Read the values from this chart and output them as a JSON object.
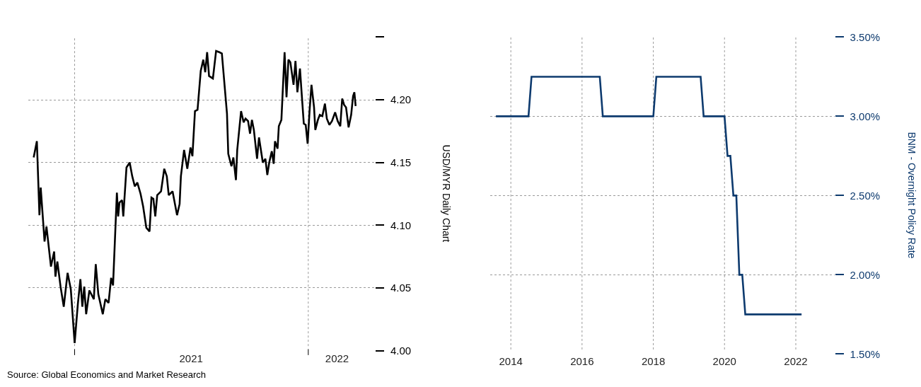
{
  "chart_data": [
    {
      "type": "line",
      "ylabel": "USD/MYR Daily Chart",
      "grid": true,
      "xlim": [
        "2020-10-21",
        "2022-04-15"
      ],
      "xticks": [
        {
          "value": "2021-01-01",
          "label": null
        },
        {
          "value": "2021-07-02",
          "label": "2021"
        },
        {
          "value": "2022-01-01",
          "label": null
        },
        {
          "value": "2022-02-15",
          "label": "2022"
        }
      ],
      "ylim": [
        4.0,
        4.25
      ],
      "yticks": [
        {
          "value": 4.0,
          "label": "4.00"
        },
        4.05,
        {
          "value": 4.1,
          "label": "4.10"
        },
        4.15,
        {
          "value": 4.2,
          "label": "4.20"
        },
        {
          "value": 4.25,
          "label": null
        }
      ],
      "annotations": [
        "Source: Global Economics and Market Research"
      ],
      "series": [
        {
          "color": "#000000",
          "x": [
            "2020-10-29",
            "2020-11-03",
            "2020-11-07",
            "2020-11-09",
            "2020-11-15",
            "2020-11-18",
            "2020-11-25",
            "2020-11-30",
            "2020-12-02",
            "2020-12-05",
            "2020-12-10",
            "2020-12-15",
            "2020-12-21",
            "2020-12-26",
            "2021-01-01",
            "2021-01-06",
            "2021-01-10",
            "2021-01-13",
            "2021-01-16",
            "2021-01-19",
            "2021-01-24",
            "2021-01-31",
            "2021-02-03",
            "2021-02-07",
            "2021-02-14",
            "2021-02-18",
            "2021-02-23",
            "2021-02-27",
            "2021-03-02",
            "2021-03-08",
            "2021-03-10",
            "2021-03-12",
            "2021-03-16",
            "2021-03-18",
            "2021-03-23",
            "2021-03-28",
            "2021-04-01",
            "2021-04-05",
            "2021-04-09",
            "2021-04-14",
            "2021-04-18",
            "2021-04-23",
            "2021-04-28",
            "2021-05-01",
            "2021-05-04",
            "2021-05-07",
            "2021-05-10",
            "2021-05-16",
            "2021-05-21",
            "2021-05-25",
            "2021-05-28",
            "2021-06-03",
            "2021-06-10",
            "2021-06-14",
            "2021-06-16",
            "2021-06-21",
            "2021-06-26",
            "2021-07-01",
            "2021-07-04",
            "2021-07-08",
            "2021-07-12",
            "2021-07-17",
            "2021-07-21",
            "2021-07-24",
            "2021-07-27",
            "2021-07-30",
            "2021-08-05",
            "2021-08-10",
            "2021-08-15",
            "2021-08-19",
            "2021-08-27",
            "2021-08-29",
            "2021-09-03",
            "2021-09-06",
            "2021-09-10",
            "2021-09-12",
            "2021-09-18",
            "2021-09-22",
            "2021-09-25",
            "2021-09-29",
            "2021-10-02",
            "2021-10-05",
            "2021-10-08",
            "2021-10-13",
            "2021-10-16",
            "2021-10-22",
            "2021-10-26",
            "2021-10-29",
            "2021-11-01",
            "2021-11-05",
            "2021-11-08",
            "2021-11-10",
            "2021-11-14",
            "2021-11-16",
            "2021-11-20",
            "2021-11-25",
            "2021-11-28",
            "2021-12-01",
            "2021-12-04",
            "2021-12-09",
            "2021-12-12",
            "2021-12-15",
            "2021-12-19",
            "2021-12-21",
            "2021-12-25",
            "2021-12-28",
            "2021-12-31",
            "2022-01-03",
            "2022-01-06",
            "2022-01-10",
            "2022-01-12",
            "2022-01-16",
            "2022-01-19",
            "2022-01-23",
            "2022-01-27",
            "2022-01-30",
            "2022-02-03",
            "2022-02-07",
            "2022-02-12",
            "2022-02-16",
            "2022-02-20",
            "2022-02-23",
            "2022-02-26",
            "2022-03-01",
            "2022-03-05",
            "2022-03-09",
            "2022-03-12",
            "2022-03-14",
            "2022-03-16"
          ],
          "values": [
            4.154,
            4.167,
            4.108,
            4.13,
            4.087,
            4.099,
            4.067,
            4.079,
            4.059,
            4.071,
            4.051,
            4.035,
            4.062,
            4.049,
            4.006,
            4.037,
            4.057,
            4.035,
            4.051,
            4.029,
            4.048,
            4.041,
            4.069,
            4.045,
            4.029,
            4.041,
            4.038,
            4.058,
            4.052,
            4.126,
            4.107,
            4.118,
            4.12,
            4.107,
            4.146,
            4.15,
            4.139,
            4.131,
            4.134,
            4.125,
            4.115,
            4.098,
            4.095,
            4.122,
            4.121,
            4.107,
            4.124,
            4.127,
            4.145,
            4.139,
            4.124,
            4.127,
            4.108,
            4.117,
            4.139,
            4.16,
            4.145,
            4.162,
            4.155,
            4.191,
            4.192,
            4.223,
            4.232,
            4.222,
            4.238,
            4.219,
            4.217,
            4.239,
            4.238,
            4.237,
            4.189,
            4.157,
            4.147,
            4.154,
            4.136,
            4.16,
            4.191,
            4.182,
            4.185,
            4.183,
            4.173,
            4.184,
            4.176,
            4.153,
            4.17,
            4.15,
            4.153,
            4.14,
            4.15,
            4.159,
            4.149,
            4.167,
            4.161,
            4.179,
            4.184,
            4.238,
            4.202,
            4.232,
            4.23,
            4.212,
            4.231,
            4.206,
            4.225,
            4.21,
            4.181,
            4.18,
            4.165,
            4.191,
            4.212,
            4.194,
            4.176,
            4.184,
            4.188,
            4.187,
            4.197,
            4.185,
            4.18,
            4.183,
            4.19,
            4.183,
            4.179,
            4.201,
            4.196,
            4.194,
            4.178,
            4.188,
            4.203,
            4.206,
            4.195
          ]
        }
      ]
    },
    {
      "type": "line",
      "ylabel": "BNM - Overnight Policy Rate",
      "grid": true,
      "xlim": [
        "2013-06-01",
        "2023-02-01"
      ],
      "xticks": [
        "2014",
        "2016",
        "2018",
        "2020",
        "2022"
      ],
      "ylim": [
        1.5,
        3.5
      ],
      "yticks": [
        {
          "value": 1.5,
          "label": "1.50%"
        },
        {
          "value": 2.0,
          "label": "2.00%"
        },
        {
          "value": 2.5,
          "label": "2.50%"
        },
        {
          "value": 3.0,
          "label": "3.00%"
        },
        {
          "value": 3.5,
          "label": "3.50%"
        }
      ],
      "series": [
        {
          "color": "#0d3a6e",
          "x": [
            "2013-08-01",
            "2014-07-01",
            "2014-08-01",
            "2016-07-01",
            "2016-08-01",
            "2018-01-01",
            "2018-02-01",
            "2019-05-01",
            "2019-06-01",
            "2020-01-01",
            "2020-02-01",
            "2020-03-01",
            "2020-04-01",
            "2020-05-01",
            "2020-06-01",
            "2020-07-01",
            "2020-08-01",
            "2022-03-01"
          ],
          "values": [
            3.0,
            3.0,
            3.25,
            3.25,
            3.0,
            3.0,
            3.25,
            3.25,
            3.0,
            3.0,
            2.75,
            2.75,
            2.5,
            2.5,
            2.0,
            2.0,
            1.75,
            1.75
          ]
        }
      ]
    }
  ]
}
